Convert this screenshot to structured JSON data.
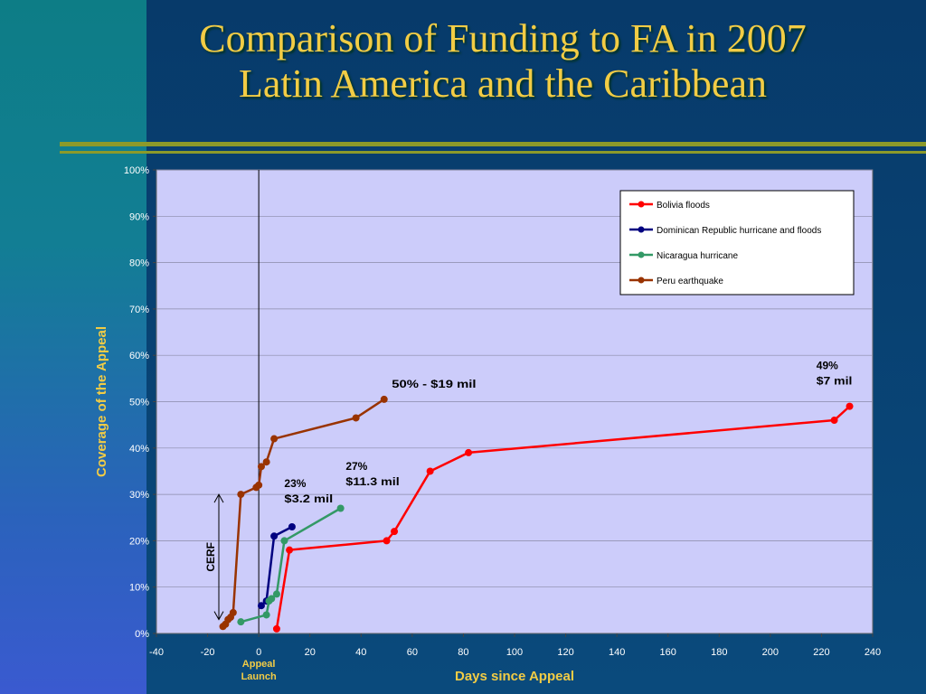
{
  "slide": {
    "title_line1": "Comparison of Funding to FA in 2007",
    "title_line2": "Latin America and the Caribbean"
  },
  "colors": {
    "title": "#f2cc45",
    "plot_bg": "#ccccfa",
    "axis_title": "#f2cc45",
    "rule": "#8c9a2a"
  },
  "chart_data": {
    "type": "line",
    "title": "",
    "xlabel": "Days since Appeal",
    "ylabel": "Coverage of the Appeal",
    "xlim": [
      -40,
      240
    ],
    "ylim": [
      0,
      100
    ],
    "x_ticks": [
      -40,
      -20,
      0,
      20,
      40,
      60,
      80,
      100,
      120,
      140,
      160,
      180,
      200,
      220,
      240
    ],
    "y_ticks": [
      "0%",
      "10%",
      "20%",
      "30%",
      "40%",
      "50%",
      "60%",
      "70%",
      "80%",
      "90%",
      "100%"
    ],
    "grid": true,
    "legend_position": "top-right",
    "series": [
      {
        "name": "Bolivia floods",
        "color": "#ff0000",
        "points": [
          [
            7,
            1
          ],
          [
            12,
            18
          ],
          [
            50,
            20
          ],
          [
            53,
            22
          ],
          [
            67,
            35
          ],
          [
            82,
            39
          ],
          [
            225,
            46
          ],
          [
            231,
            49
          ]
        ]
      },
      {
        "name": "Dominican Republic hurricane and floods",
        "color": "#000080",
        "points": [
          [
            1,
            6
          ],
          [
            3,
            7
          ],
          [
            6,
            21
          ],
          [
            13,
            23
          ]
        ]
      },
      {
        "name": "Nicaragua hurricane",
        "color": "#339966",
        "points": [
          [
            -7,
            2.5
          ],
          [
            3,
            4
          ],
          [
            4,
            7
          ],
          [
            5,
            7.5
          ],
          [
            7,
            8.5
          ],
          [
            10,
            20
          ],
          [
            32,
            27
          ]
        ]
      },
      {
        "name": "Peru earthquake",
        "color": "#993300",
        "points": [
          [
            -14,
            1.5
          ],
          [
            -13,
            2
          ],
          [
            -12,
            3
          ],
          [
            -11,
            3.5
          ],
          [
            -10,
            4.5
          ],
          [
            -7,
            30
          ],
          [
            -1,
            31.5
          ],
          [
            0,
            32
          ],
          [
            1,
            36
          ],
          [
            3,
            37
          ],
          [
            6,
            42
          ],
          [
            38,
            46.5
          ],
          [
            49,
            50.5
          ]
        ]
      }
    ],
    "annotations": [
      {
        "lines": [
          "50% - $19 mil"
        ],
        "x": 52,
        "y": 53,
        "x_end": 85
      },
      {
        "lines": [
          "27%",
          "$11.3 mil"
        ],
        "x": 34,
        "y": 35.3,
        "x_end": 55
      },
      {
        "lines": [
          "23%",
          "$3.2 mil"
        ],
        "x": 10,
        "y": 31.6,
        "x_end": 29
      },
      {
        "lines": [
          "49%",
          "$7 mil"
        ],
        "x": 218,
        "y": 57,
        "x_end": 232
      }
    ],
    "vertical_line": {
      "x": 0,
      "label_lines": [
        "Appeal",
        "Launch"
      ]
    },
    "cerf": {
      "label": "CERF",
      "y_from": 3,
      "y_to": 30
    }
  }
}
